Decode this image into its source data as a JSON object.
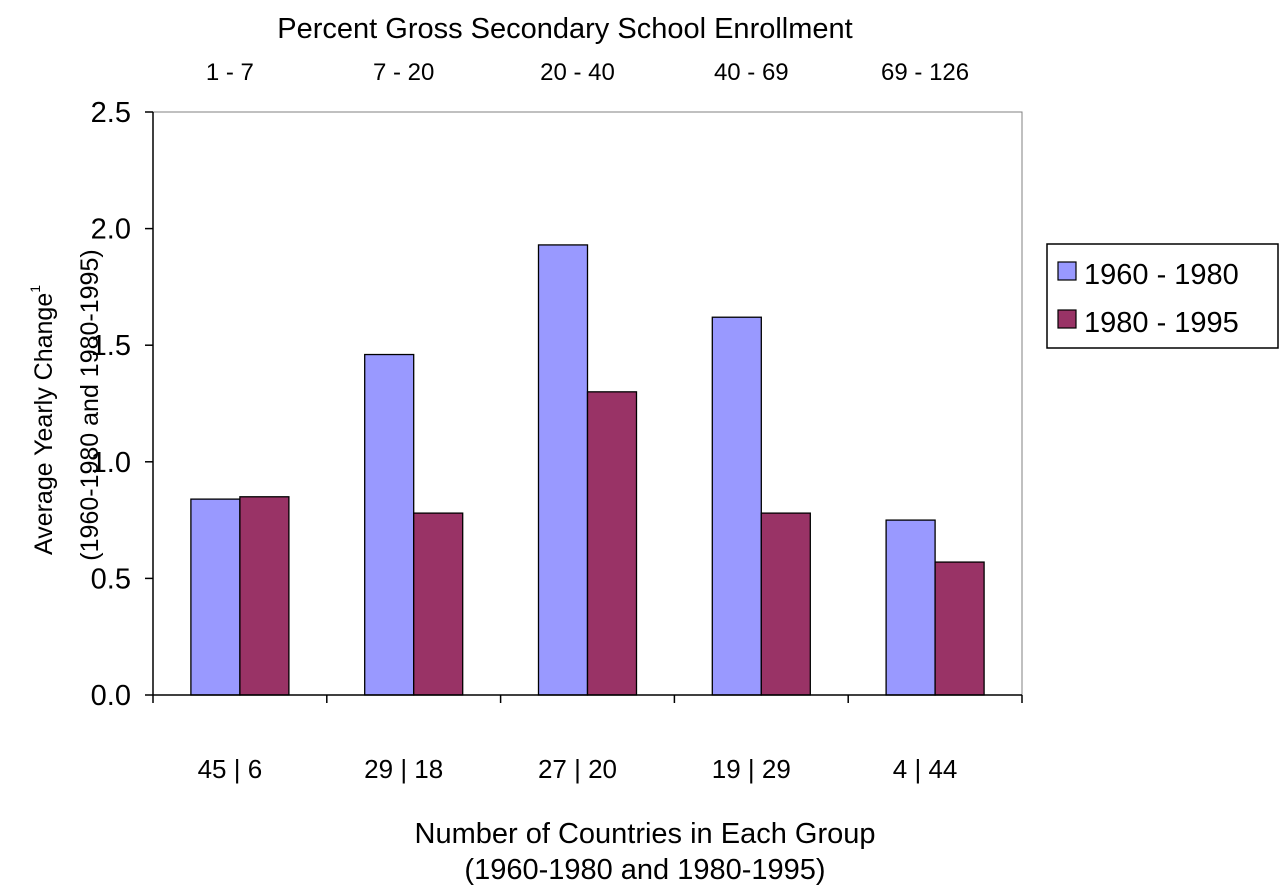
{
  "chart_data": {
    "type": "bar",
    "title": "Percent Gross Secondary School Enrollment",
    "top_categories": [
      "1 - 7",
      "7 - 20",
      "20 - 40",
      "40 - 69",
      "69 - 126"
    ],
    "categories": [
      "45 | 6",
      "29 | 18",
      "27 | 20",
      "19 | 29",
      "4 | 44"
    ],
    "series": [
      {
        "name": "1960 - 1980",
        "color": "#9999ff",
        "values": [
          0.84,
          1.46,
          1.93,
          1.62,
          0.75
        ]
      },
      {
        "name": "1980 - 1995",
        "color": "#993366",
        "values": [
          0.85,
          0.78,
          1.3,
          0.78,
          0.57
        ]
      }
    ],
    "ylabel": "Average Yearly Change",
    "ylabel_superscript": "1",
    "ylabel_line2": "(1960-1980 and 1980-1995)",
    "xlabel": "Number of Countries in Each Group",
    "xlabel_line2": "(1960-1980 and 1980-1995)",
    "ylim": [
      0,
      2.5
    ],
    "yticks": [
      "0.0",
      "0.5",
      "1.0",
      "1.5",
      "2.0",
      "2.5"
    ],
    "grid": false,
    "legend_position": "right"
  }
}
